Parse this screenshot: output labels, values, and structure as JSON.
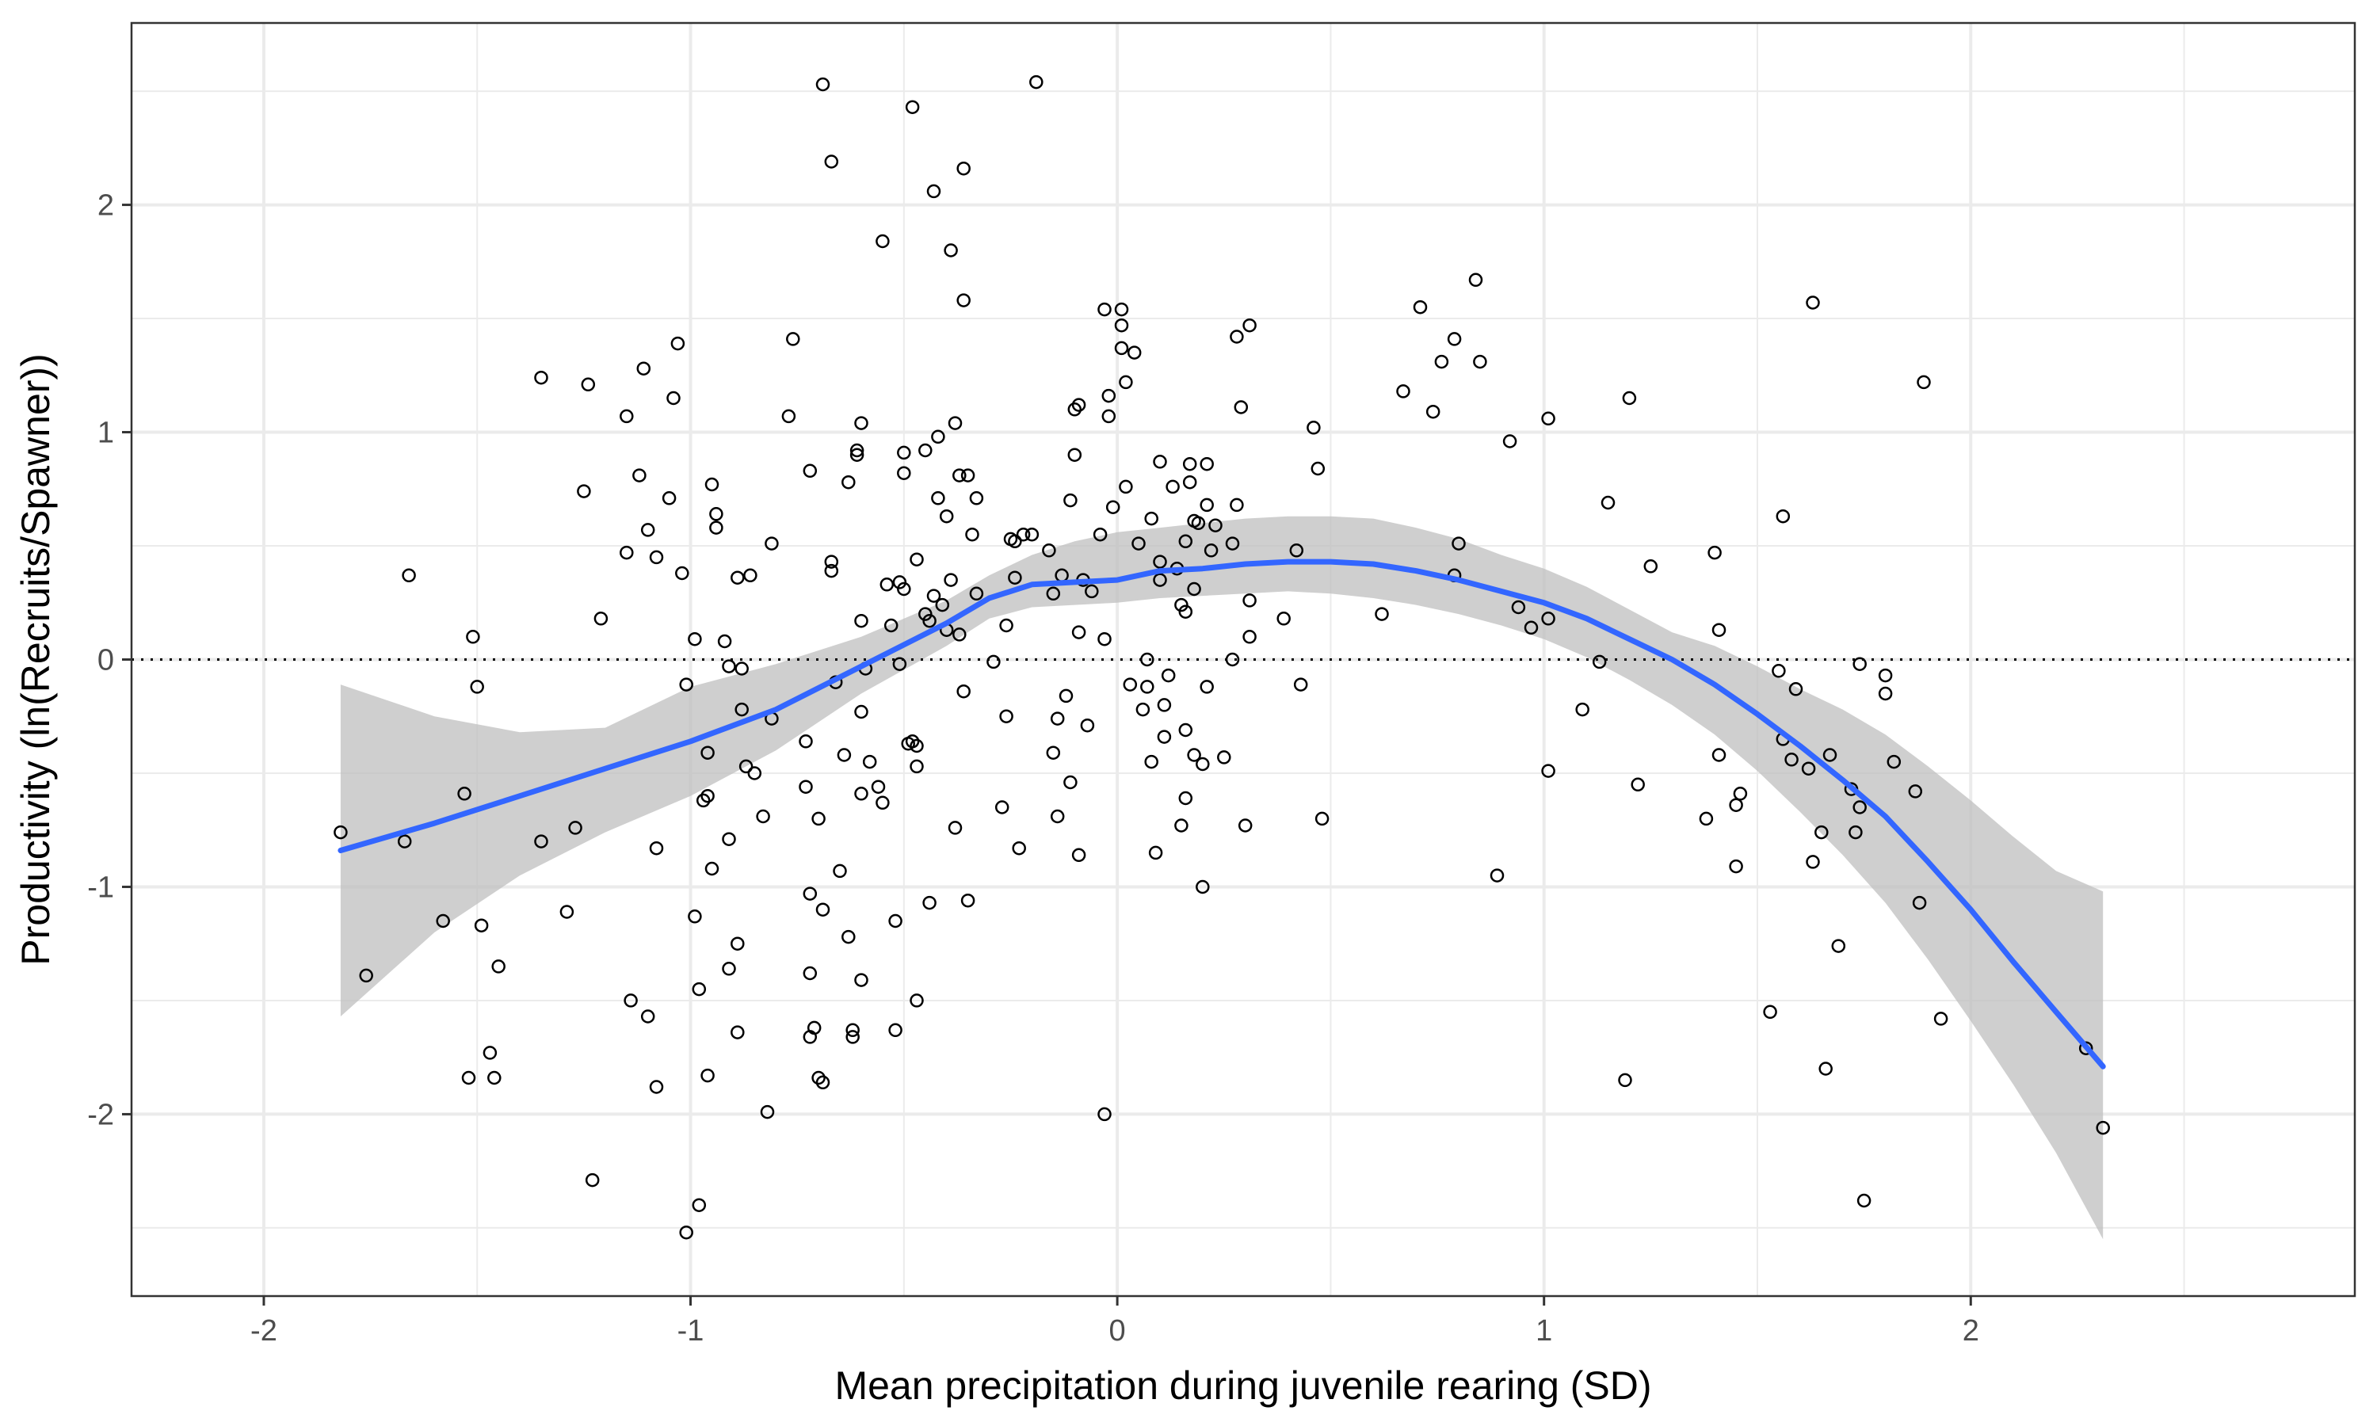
{
  "chart_data": {
    "type": "scatter",
    "xlabel": "Mean precipitation during juvenile rearing (SD)",
    "ylabel": "Productivity (ln(Recruits/Spawner))",
    "xlim": [
      -2.31,
      2.9
    ],
    "ylim": [
      -2.8,
      2.8
    ],
    "x_ticks": [
      -2,
      -1,
      0,
      1,
      2
    ],
    "y_ticks": [
      -2,
      -1,
      0,
      1,
      2
    ],
    "x_minor_ticks": [
      -1.5,
      -0.5,
      0.5,
      1.5,
      2.5
    ],
    "y_minor_ticks": [
      -2.5,
      -1.5,
      -0.5,
      0.5,
      1.5,
      2.5
    ],
    "grid": true,
    "reference_line": {
      "y": 0,
      "style": "dotted"
    },
    "colors": {
      "smooth_line": "#3366FF",
      "confidence_band": "#bfbfbf",
      "points": "#000000",
      "grid": "#ebebeb"
    },
    "points": [
      [
        -1.82,
        -0.76
      ],
      [
        -1.76,
        -1.39
      ],
      [
        -1.67,
        -0.8
      ],
      [
        -1.66,
        0.37
      ],
      [
        -1.58,
        -1.15
      ],
      [
        -1.53,
        -0.59
      ],
      [
        -1.51,
        0.1
      ],
      [
        -1.5,
        -0.12
      ],
      [
        -1.52,
        -1.84
      ],
      [
        -1.49,
        -1.17
      ],
      [
        -1.47,
        -1.73
      ],
      [
        -1.46,
        -1.84
      ],
      [
        -1.45,
        -1.35
      ],
      [
        -1.35,
        1.24
      ],
      [
        -1.35,
        -0.8
      ],
      [
        -1.29,
        -1.11
      ],
      [
        -1.27,
        -0.74
      ],
      [
        -1.25,
        0.74
      ],
      [
        -1.24,
        1.21
      ],
      [
        -1.23,
        -2.29
      ],
      [
        -1.21,
        0.18
      ],
      [
        -1.15,
        1.07
      ],
      [
        -1.15,
        0.47
      ],
      [
        -1.14,
        -1.5
      ],
      [
        -1.12,
        0.81
      ],
      [
        -1.11,
        1.28
      ],
      [
        -1.1,
        0.57
      ],
      [
        -1.1,
        -1.57
      ],
      [
        -1.08,
        0.45
      ],
      [
        -1.08,
        -1.88
      ],
      [
        -1.08,
        -0.83
      ],
      [
        -1.05,
        0.71
      ],
      [
        -1.04,
        1.15
      ],
      [
        -1.03,
        1.39
      ],
      [
        -1.02,
        0.38
      ],
      [
        -1.01,
        -0.11
      ],
      [
        -1.01,
        -2.52
      ],
      [
        -0.99,
        0.09
      ],
      [
        -0.99,
        -1.13
      ],
      [
        -0.98,
        -1.45
      ],
      [
        -0.98,
        -2.4
      ],
      [
        -0.97,
        -0.62
      ],
      [
        -0.96,
        -1.83
      ],
      [
        -0.96,
        -0.6
      ],
      [
        -0.96,
        -0.41
      ],
      [
        -0.95,
        -0.92
      ],
      [
        -0.95,
        0.77
      ],
      [
        -0.94,
        0.64
      ],
      [
        -0.94,
        0.58
      ],
      [
        -0.92,
        0.08
      ],
      [
        -0.91,
        -0.03
      ],
      [
        -0.91,
        -0.79
      ],
      [
        -0.91,
        -1.36
      ],
      [
        -0.89,
        0.36
      ],
      [
        -0.89,
        -1.64
      ],
      [
        -0.89,
        -1.25
      ],
      [
        -0.88,
        -0.04
      ],
      [
        -0.88,
        -0.22
      ],
      [
        -0.87,
        -0.47
      ],
      [
        -0.86,
        0.37
      ],
      [
        -0.85,
        -0.5
      ],
      [
        -0.83,
        -0.69
      ],
      [
        -0.82,
        -1.99
      ],
      [
        -0.81,
        0.51
      ],
      [
        -0.81,
        -0.26
      ],
      [
        -0.77,
        1.07
      ],
      [
        -0.76,
        1.41
      ],
      [
        -0.73,
        -0.36
      ],
      [
        -0.73,
        -0.56
      ],
      [
        -0.72,
        0.83
      ],
      [
        -0.72,
        -1.03
      ],
      [
        -0.72,
        -1.38
      ],
      [
        -0.72,
        -1.66
      ],
      [
        -0.71,
        -1.62
      ],
      [
        -0.7,
        -0.7
      ],
      [
        -0.7,
        -1.84
      ],
      [
        -0.69,
        -1.1
      ],
      [
        -0.69,
        -1.86
      ],
      [
        -0.69,
        2.53
      ],
      [
        -0.67,
        2.19
      ],
      [
        -0.67,
        0.43
      ],
      [
        -0.67,
        0.39
      ],
      [
        -0.66,
        -0.1
      ],
      [
        -0.65,
        -0.93
      ],
      [
        -0.64,
        -0.42
      ],
      [
        -0.63,
        0.78
      ],
      [
        -0.63,
        -1.22
      ],
      [
        -0.62,
        -1.66
      ],
      [
        -0.62,
        -1.63
      ],
      [
        -0.61,
        0.92
      ],
      [
        -0.61,
        0.9
      ],
      [
        -0.6,
        1.04
      ],
      [
        -0.6,
        0.17
      ],
      [
        -0.6,
        -0.23
      ],
      [
        -0.6,
        -0.59
      ],
      [
        -0.6,
        -1.41
      ],
      [
        -0.59,
        -0.04
      ],
      [
        -0.58,
        -0.45
      ],
      [
        -0.56,
        -0.56
      ],
      [
        -0.55,
        1.84
      ],
      [
        -0.55,
        -0.63
      ],
      [
        -0.54,
        0.33
      ],
      [
        -0.53,
        0.15
      ],
      [
        -0.52,
        -1.15
      ],
      [
        -0.52,
        -1.63
      ],
      [
        -0.51,
        -0.02
      ],
      [
        -0.51,
        0.34
      ],
      [
        -0.5,
        0.91
      ],
      [
        -0.5,
        0.31
      ],
      [
        -0.5,
        0.82
      ],
      [
        -0.49,
        -0.37
      ],
      [
        -0.48,
        -0.36
      ],
      [
        -0.48,
        2.43
      ],
      [
        -0.47,
        -0.38
      ],
      [
        -0.47,
        -1.5
      ],
      [
        -0.47,
        0.44
      ],
      [
        -0.47,
        -0.47
      ],
      [
        -0.45,
        0.92
      ],
      [
        -0.45,
        0.2
      ],
      [
        -0.44,
        -1.07
      ],
      [
        -0.44,
        0.17
      ],
      [
        -0.43,
        2.06
      ],
      [
        -0.43,
        0.28
      ],
      [
        -0.42,
        0.71
      ],
      [
        -0.42,
        0.98
      ],
      [
        -0.41,
        0.24
      ],
      [
        -0.4,
        0.63
      ],
      [
        -0.4,
        0.13
      ],
      [
        -0.39,
        0.35
      ],
      [
        -0.39,
        1.8
      ],
      [
        -0.38,
        -0.74
      ],
      [
        -0.38,
        1.04
      ],
      [
        -0.37,
        0.81
      ],
      [
        -0.37,
        0.11
      ],
      [
        -0.36,
        2.16
      ],
      [
        -0.36,
        1.58
      ],
      [
        -0.36,
        -0.14
      ],
      [
        -0.35,
        0.81
      ],
      [
        -0.35,
        -1.06
      ],
      [
        -0.34,
        0.55
      ],
      [
        -0.33,
        0.71
      ],
      [
        -0.33,
        0.29
      ],
      [
        -0.29,
        -0.01
      ],
      [
        -0.27,
        -0.65
      ],
      [
        -0.26,
        0.15
      ],
      [
        -0.26,
        -0.25
      ],
      [
        -0.25,
        0.53
      ],
      [
        -0.24,
        0.52
      ],
      [
        -0.24,
        0.36
      ],
      [
        -0.23,
        -0.83
      ],
      [
        -0.22,
        0.55
      ],
      [
        -0.2,
        0.55
      ],
      [
        -0.19,
        2.54
      ],
      [
        -0.16,
        0.48
      ],
      [
        -0.15,
        -0.41
      ],
      [
        -0.15,
        0.29
      ],
      [
        -0.14,
        -0.69
      ],
      [
        -0.14,
        -0.26
      ],
      [
        -0.13,
        0.37
      ],
      [
        -0.12,
        -0.16
      ],
      [
        -0.11,
        -0.54
      ],
      [
        -0.11,
        0.7
      ],
      [
        -0.1,
        0.9
      ],
      [
        -0.1,
        1.1
      ],
      [
        -0.09,
        0.12
      ],
      [
        -0.09,
        -0.86
      ],
      [
        -0.09,
        1.12
      ],
      [
        -0.08,
        0.35
      ],
      [
        -0.07,
        -0.29
      ],
      [
        -0.06,
        0.3
      ],
      [
        -0.04,
        0.55
      ],
      [
        -0.03,
        0.09
      ],
      [
        -0.03,
        1.54
      ],
      [
        -0.03,
        -2.0
      ],
      [
        -0.02,
        1.16
      ],
      [
        -0.02,
        1.07
      ],
      [
        -0.01,
        0.67
      ],
      [
        0.01,
        1.47
      ],
      [
        0.01,
        1.37
      ],
      [
        0.01,
        1.54
      ],
      [
        0.02,
        1.22
      ],
      [
        0.02,
        0.76
      ],
      [
        0.03,
        -0.11
      ],
      [
        0.04,
        1.35
      ],
      [
        0.05,
        0.51
      ],
      [
        0.06,
        -0.22
      ],
      [
        0.07,
        0.0
      ],
      [
        0.07,
        -0.12
      ],
      [
        0.08,
        0.62
      ],
      [
        0.08,
        -0.45
      ],
      [
        0.09,
        -0.85
      ],
      [
        0.1,
        0.87
      ],
      [
        0.1,
        0.35
      ],
      [
        0.1,
        0.43
      ],
      [
        0.11,
        -0.2
      ],
      [
        0.11,
        -0.34
      ],
      [
        0.12,
        -0.07
      ],
      [
        0.13,
        0.76
      ],
      [
        0.14,
        0.4
      ],
      [
        0.15,
        0.24
      ],
      [
        0.15,
        -0.73
      ],
      [
        0.16,
        0.52
      ],
      [
        0.16,
        0.21
      ],
      [
        0.16,
        -0.31
      ],
      [
        0.16,
        -0.61
      ],
      [
        0.17,
        0.86
      ],
      [
        0.17,
        0.78
      ],
      [
        0.18,
        0.61
      ],
      [
        0.18,
        0.31
      ],
      [
        0.18,
        -0.42
      ],
      [
        0.19,
        0.6
      ],
      [
        0.2,
        -1.0
      ],
      [
        0.2,
        -0.46
      ],
      [
        0.21,
        0.86
      ],
      [
        0.21,
        0.68
      ],
      [
        0.21,
        -0.12
      ],
      [
        0.22,
        0.48
      ],
      [
        0.23,
        0.59
      ],
      [
        0.25,
        -0.43
      ],
      [
        0.27,
        0.51
      ],
      [
        0.27,
        0.0
      ],
      [
        0.28,
        0.68
      ],
      [
        0.28,
        1.42
      ],
      [
        0.29,
        1.11
      ],
      [
        0.3,
        -0.73
      ],
      [
        0.31,
        0.26
      ],
      [
        0.31,
        0.1
      ],
      [
        0.31,
        1.47
      ],
      [
        0.39,
        0.18
      ],
      [
        0.42,
        0.48
      ],
      [
        0.43,
        -0.11
      ],
      [
        0.46,
        1.02
      ],
      [
        0.47,
        0.84
      ],
      [
        0.48,
        -0.7
      ],
      [
        0.62,
        0.2
      ],
      [
        0.67,
        1.18
      ],
      [
        0.71,
        1.55
      ],
      [
        0.74,
        1.09
      ],
      [
        0.76,
        1.31
      ],
      [
        0.79,
        1.41
      ],
      [
        0.79,
        0.37
      ],
      [
        0.8,
        0.51
      ],
      [
        0.84,
        1.67
      ],
      [
        0.85,
        1.31
      ],
      [
        0.89,
        -0.95
      ],
      [
        0.92,
        0.96
      ],
      [
        0.94,
        0.23
      ],
      [
        0.97,
        0.14
      ],
      [
        1.01,
        1.06
      ],
      [
        1.01,
        0.18
      ],
      [
        1.01,
        -0.49
      ],
      [
        1.09,
        -0.22
      ],
      [
        1.13,
        -0.01
      ],
      [
        1.15,
        0.69
      ],
      [
        1.19,
        -1.85
      ],
      [
        1.2,
        1.15
      ],
      [
        1.22,
        -0.55
      ],
      [
        1.25,
        0.41
      ],
      [
        1.38,
        -0.7
      ],
      [
        1.4,
        0.47
      ],
      [
        1.41,
        0.13
      ],
      [
        1.41,
        -0.42
      ],
      [
        1.45,
        -0.91
      ],
      [
        1.45,
        -0.64
      ],
      [
        1.46,
        -0.59
      ],
      [
        1.53,
        -1.55
      ],
      [
        1.55,
        -0.05
      ],
      [
        1.56,
        0.63
      ],
      [
        1.56,
        -0.35
      ],
      [
        1.58,
        -0.44
      ],
      [
        1.59,
        -0.13
      ],
      [
        1.62,
        -0.48
      ],
      [
        1.63,
        1.57
      ],
      [
        1.63,
        -0.89
      ],
      [
        1.65,
        -0.76
      ],
      [
        1.66,
        -1.8
      ],
      [
        1.67,
        -0.42
      ],
      [
        1.69,
        -1.26
      ],
      [
        1.72,
        -0.57
      ],
      [
        1.73,
        -0.76
      ],
      [
        1.74,
        -0.65
      ],
      [
        1.74,
        -0.02
      ],
      [
        1.75,
        -2.38
      ],
      [
        1.8,
        -0.07
      ],
      [
        1.8,
        -0.15
      ],
      [
        1.82,
        -0.45
      ],
      [
        1.87,
        -0.58
      ],
      [
        1.88,
        -1.07
      ],
      [
        1.89,
        1.22
      ],
      [
        1.93,
        -1.58
      ],
      [
        2.27,
        -1.71
      ],
      [
        2.31,
        -2.06
      ]
    ],
    "smooth": {
      "x": [
        -1.82,
        -1.6,
        -1.4,
        -1.2,
        -1.0,
        -0.8,
        -0.6,
        -0.4,
        -0.3,
        -0.2,
        -0.1,
        0.0,
        0.1,
        0.2,
        0.3,
        0.4,
        0.5,
        0.6,
        0.7,
        0.8,
        0.9,
        1.0,
        1.1,
        1.2,
        1.3,
        1.4,
        1.5,
        1.6,
        1.7,
        1.8,
        1.9,
        2.0,
        2.1,
        2.2,
        2.31
      ],
      "y": [
        -0.84,
        -0.72,
        -0.6,
        -0.48,
        -0.36,
        -0.22,
        -0.03,
        0.16,
        0.27,
        0.33,
        0.34,
        0.35,
        0.39,
        0.4,
        0.42,
        0.43,
        0.43,
        0.42,
        0.39,
        0.35,
        0.3,
        0.25,
        0.18,
        0.09,
        0.0,
        -0.11,
        -0.24,
        -0.38,
        -0.53,
        -0.69,
        -0.89,
        -1.1,
        -1.33,
        -1.55,
        -1.79
      ],
      "lower": [
        -1.57,
        -1.2,
        -0.95,
        -0.76,
        -0.6,
        -0.4,
        -0.15,
        0.06,
        0.18,
        0.23,
        0.24,
        0.25,
        0.27,
        0.28,
        0.29,
        0.3,
        0.29,
        0.27,
        0.24,
        0.2,
        0.15,
        0.09,
        0.01,
        -0.09,
        -0.2,
        -0.33,
        -0.49,
        -0.67,
        -0.86,
        -1.07,
        -1.32,
        -1.59,
        -1.87,
        -2.17,
        -2.55
      ],
      "upper": [
        -0.11,
        -0.25,
        -0.32,
        -0.3,
        -0.12,
        -0.02,
        0.1,
        0.26,
        0.37,
        0.46,
        0.52,
        0.56,
        0.58,
        0.6,
        0.62,
        0.63,
        0.63,
        0.62,
        0.58,
        0.53,
        0.46,
        0.4,
        0.32,
        0.22,
        0.12,
        0.06,
        -0.03,
        -0.13,
        -0.22,
        -0.33,
        -0.47,
        -0.62,
        -0.78,
        -0.93,
        -1.02
      ]
    }
  }
}
